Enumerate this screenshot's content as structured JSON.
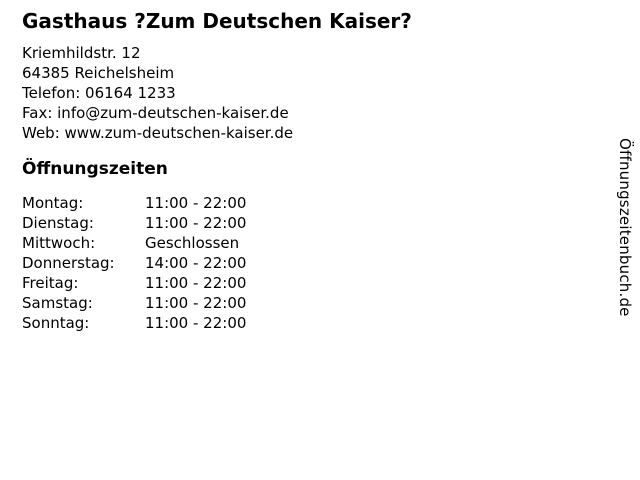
{
  "page": {
    "title": "Gasthaus ?Zum Deutschen Kaiser?",
    "watermark": "Öffnungszeitenbuch.de"
  },
  "colors": {
    "text": "#000000",
    "background": "#ffffff"
  },
  "contact": {
    "street": "Kriemhildstr. 12",
    "city": "64385 Reichelsheim",
    "phone": "Telefon: 06164 1233",
    "fax": "Fax: info@zum-deutschen-kaiser.de",
    "web": "Web: www.zum-deutschen-kaiser.de"
  },
  "opening_hours": {
    "heading": "Öffnungszeiten",
    "rows": [
      {
        "day": "Montag:",
        "hours": "11:00 - 22:00"
      },
      {
        "day": "Dienstag:",
        "hours": "11:00 - 22:00"
      },
      {
        "day": "Mittwoch:",
        "hours": "Geschlossen"
      },
      {
        "day": "Donnerstag:",
        "hours": "14:00 - 22:00"
      },
      {
        "day": "Freitag:",
        "hours": "11:00 - 22:00"
      },
      {
        "day": "Samstag:",
        "hours": "11:00 - 22:00"
      },
      {
        "day": "Sonntag:",
        "hours": "11:00 - 22:00"
      }
    ]
  }
}
